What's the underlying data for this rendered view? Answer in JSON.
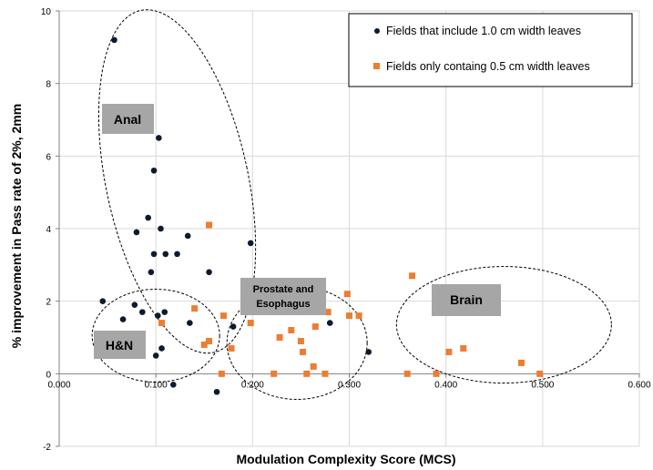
{
  "chart_data": {
    "type": "scatter",
    "xlabel": "Modulation  Complexity Score (MCS)",
    "ylabel": "% improvement in Pass rate of 2%, 2mm",
    "xlim": [
      0,
      0.6
    ],
    "ylim": [
      -2,
      10
    ],
    "xticks": [
      "0.000",
      "0.100",
      "0.200",
      "0.300",
      "0.400",
      "0.500",
      "0.600"
    ],
    "yticks": [
      "-2",
      "0",
      "2",
      "4",
      "6",
      "8",
      "10"
    ],
    "grid": true,
    "legend_placement": "top-right",
    "series": [
      {
        "name": "Fields that include 1.0 cm width leaves",
        "color": "#0d1b2e",
        "marker": "circle",
        "points": [
          [
            0.057,
            9.2
          ],
          [
            0.103,
            6.5
          ],
          [
            0.098,
            5.6
          ],
          [
            0.092,
            4.3
          ],
          [
            0.08,
            3.9
          ],
          [
            0.105,
            4.0
          ],
          [
            0.133,
            3.8
          ],
          [
            0.098,
            3.3
          ],
          [
            0.11,
            3.3
          ],
          [
            0.122,
            3.3
          ],
          [
            0.198,
            3.6
          ],
          [
            0.095,
            2.8
          ],
          [
            0.155,
            2.8
          ],
          [
            0.045,
            2.0
          ],
          [
            0.078,
            1.9
          ],
          [
            0.086,
            1.7
          ],
          [
            0.066,
            1.5
          ],
          [
            0.102,
            1.6
          ],
          [
            0.109,
            1.7
          ],
          [
            0.135,
            1.4
          ],
          [
            0.18,
            1.3
          ],
          [
            0.28,
            1.4
          ],
          [
            0.085,
            1.1
          ],
          [
            0.106,
            0.7
          ],
          [
            0.1,
            0.5
          ],
          [
            0.32,
            0.6
          ],
          [
            0.118,
            -0.3
          ],
          [
            0.163,
            -0.5
          ]
        ]
      },
      {
        "name": "Fields only containg 0.5 cm width leaves",
        "color": "#ed7d31",
        "marker": "square",
        "points": [
          [
            0.155,
            4.1
          ],
          [
            0.365,
            2.7
          ],
          [
            0.298,
            2.2
          ],
          [
            0.14,
            1.8
          ],
          [
            0.17,
            1.6
          ],
          [
            0.3,
            1.6
          ],
          [
            0.31,
            1.6
          ],
          [
            0.278,
            1.7
          ],
          [
            0.106,
            1.4
          ],
          [
            0.198,
            1.4
          ],
          [
            0.24,
            1.2
          ],
          [
            0.265,
            1.3
          ],
          [
            0.228,
            1.0
          ],
          [
            0.25,
            0.9
          ],
          [
            0.15,
            0.8
          ],
          [
            0.155,
            0.9
          ],
          [
            0.178,
            0.7
          ],
          [
            0.252,
            0.6
          ],
          [
            0.418,
            0.7
          ],
          [
            0.403,
            0.6
          ],
          [
            0.263,
            0.2
          ],
          [
            0.478,
            0.3
          ],
          [
            0.168,
            0.0
          ],
          [
            0.222,
            0.0
          ],
          [
            0.256,
            0.0
          ],
          [
            0.275,
            0.0
          ],
          [
            0.36,
            0.0
          ],
          [
            0.39,
            0.0
          ],
          [
            0.497,
            0.0
          ]
        ]
      }
    ],
    "groups": [
      {
        "id": "anal",
        "label": "Anal"
      },
      {
        "id": "hn",
        "label": "H&N"
      },
      {
        "id": "prostate",
        "label": "Prostate and Esophagus",
        "lines": [
          "Prostate and",
          "Esophagus"
        ]
      },
      {
        "id": "brain",
        "label": "Brain"
      }
    ]
  }
}
